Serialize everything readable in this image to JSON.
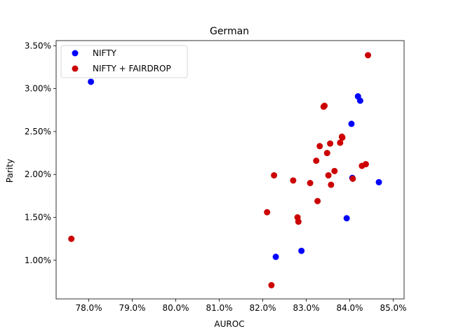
{
  "chart_data": {
    "type": "scatter",
    "title": "German",
    "xlabel": "AUROC",
    "ylabel": "Parity",
    "xlim": [
      0.7725,
      0.8525
    ],
    "ylim": [
      0.0055,
      0.0356
    ],
    "xticks": [
      0.78,
      0.79,
      0.8,
      0.81,
      0.82,
      0.83,
      0.84,
      0.85
    ],
    "xtick_labels": [
      "78.0%",
      "79.0%",
      "80.0%",
      "81.0%",
      "82.0%",
      "83.0%",
      "84.0%",
      "85.0%"
    ],
    "yticks": [
      0.01,
      0.015,
      0.02,
      0.025,
      0.03,
      0.035
    ],
    "ytick_labels": [
      "1.00%",
      "1.50%",
      "2.00%",
      "2.50%",
      "3.00%",
      "3.50%"
    ],
    "grid": false,
    "legend_position": "top-left",
    "series": [
      {
        "name": "NIFTY",
        "color": "#0000ff",
        "points": [
          [
            0.7805,
            0.0308
          ],
          [
            0.823,
            0.0104
          ],
          [
            0.8289,
            0.0111
          ],
          [
            0.8393,
            0.0149
          ],
          [
            0.8404,
            0.0259
          ],
          [
            0.8406,
            0.0196
          ],
          [
            0.8419,
            0.0291
          ],
          [
            0.8424,
            0.0286
          ],
          [
            0.8467,
            0.0191
          ]
        ]
      },
      {
        "name": "NIFTY + FAIRDROP",
        "color": "#cc0000",
        "points": [
          [
            0.776,
            0.0125
          ],
          [
            0.821,
            0.0156
          ],
          [
            0.822,
            0.0071
          ],
          [
            0.8226,
            0.0199
          ],
          [
            0.827,
            0.0193
          ],
          [
            0.828,
            0.015
          ],
          [
            0.8282,
            0.0145
          ],
          [
            0.8309,
            0.019
          ],
          [
            0.8323,
            0.0216
          ],
          [
            0.8326,
            0.0169
          ],
          [
            0.8331,
            0.0233
          ],
          [
            0.834,
            0.0279
          ],
          [
            0.8342,
            0.028
          ],
          [
            0.8348,
            0.0225
          ],
          [
            0.8351,
            0.0199
          ],
          [
            0.8355,
            0.0236
          ],
          [
            0.8357,
            0.0188
          ],
          [
            0.8365,
            0.0204
          ],
          [
            0.8378,
            0.0237
          ],
          [
            0.8382,
            0.0244
          ],
          [
            0.8383,
            0.0243
          ],
          [
            0.8407,
            0.0195
          ],
          [
            0.8428,
            0.021
          ],
          [
            0.8437,
            0.0212
          ],
          [
            0.8442,
            0.0339
          ]
        ]
      }
    ]
  }
}
